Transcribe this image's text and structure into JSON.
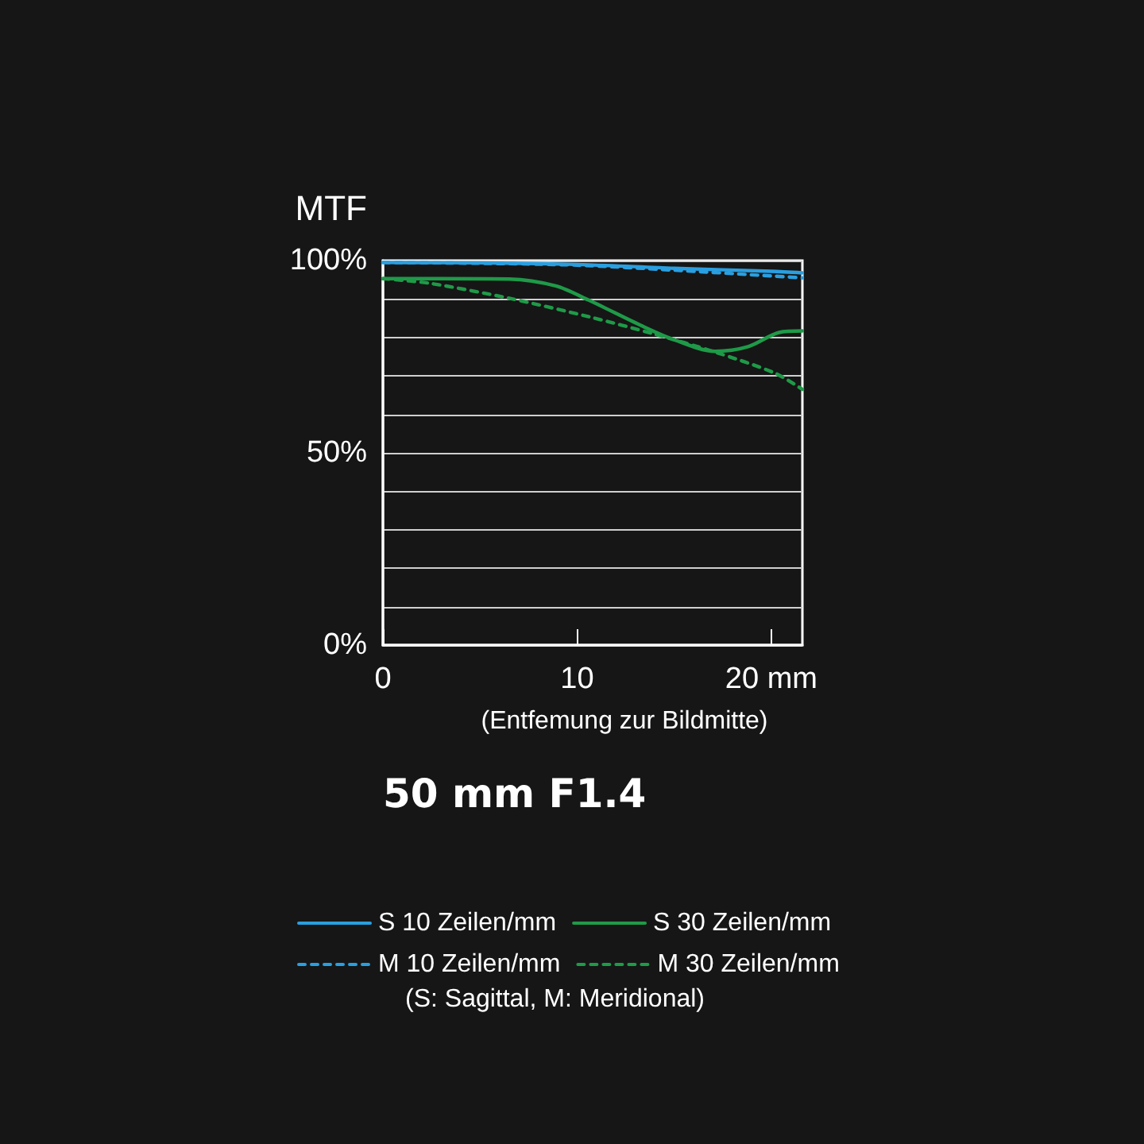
{
  "chart_data": {
    "type": "line",
    "title": "50 mm F1.4",
    "ylabel": "MTF",
    "xlabel": "(Entfemung zur Bildmitte)",
    "annotations": [
      "(S: Sagittal, M: Meridional)"
    ],
    "xlim": [
      0,
      21.6
    ],
    "xticks": [
      0,
      10,
      {
        "value": 20,
        "label": "20 mm"
      }
    ],
    "ylim": [
      0,
      100
    ],
    "yticks": [
      {
        "value": 0,
        "label": "0%"
      },
      {
        "value": 10,
        "label": null
      },
      {
        "value": 20,
        "label": null
      },
      {
        "value": 30,
        "label": null
      },
      {
        "value": 40,
        "label": null
      },
      {
        "value": 50,
        "label": "50%"
      },
      {
        "value": 60,
        "label": null
      },
      {
        "value": 70,
        "label": null
      },
      {
        "value": 80,
        "label": null
      },
      {
        "value": 90,
        "label": null
      },
      {
        "value": 100,
        "label": "100%"
      }
    ],
    "grid": "y",
    "legend": "bottom",
    "marker": "none",
    "series": [
      {
        "name": "S 10 Zeilen/mm",
        "color": "#2a9fe0",
        "line_style": "solid",
        "x": [
          0,
          5,
          10,
          15,
          20,
          21.6
        ],
        "values": [
          99.5,
          99.4,
          99,
          98,
          97.2,
          96.8
        ]
      },
      {
        "name": "S 30 Zeilen/mm",
        "color": "#1f9a48",
        "line_style": "solid",
        "x": [
          0,
          3,
          6.5,
          8.9,
          10.6,
          13.3,
          14.9,
          17.1,
          18.8,
          20.4,
          21.6
        ],
        "values": [
          95.3,
          95.3,
          95.2,
          93.4,
          89.7,
          83.1,
          79.6,
          76.4,
          77.6,
          81.3,
          81.7
        ]
      },
      {
        "name": "M 10 Zeilen/mm",
        "color": "#2a9fe0",
        "line_style": "dashed",
        "x": [
          0,
          5,
          10,
          15,
          20,
          21.6
        ],
        "values": [
          99.5,
          99.3,
          98.8,
          97.5,
          96,
          95.5
        ]
      },
      {
        "name": "M 30 Zeilen/mm",
        "color": "#1f9a48",
        "line_style": "dashed",
        "x": [
          0,
          2.4,
          6.5,
          10.6,
          13.9,
          17.1,
          20.2,
          21.6
        ],
        "values": [
          95.3,
          94.1,
          90.2,
          85.4,
          81,
          76.2,
          70.7,
          66.5
        ]
      }
    ]
  }
}
